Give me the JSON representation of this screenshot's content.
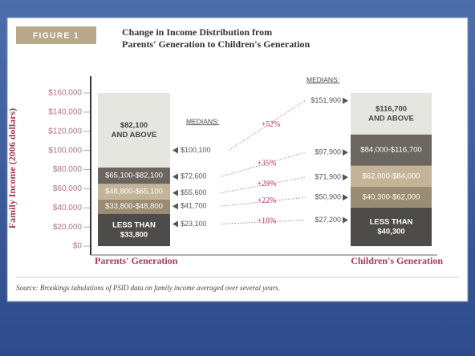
{
  "chart_data": {
    "type": "income_bands",
    "figure_label": "FIGURE 1",
    "title": [
      "Change in Income Distribution from",
      "Parents' Generation to Children's Generation"
    ],
    "ylabel": "Family Income (2006 dollars)",
    "ylim": [
      0,
      160000
    ],
    "yticks": [
      {
        "value": 0,
        "label": "$0"
      },
      {
        "value": 20000,
        "label": "$20,000"
      },
      {
        "value": 40000,
        "label": "$40,000"
      },
      {
        "value": 60000,
        "label": "$60,000"
      },
      {
        "value": 80000,
        "label": "$80,000"
      },
      {
        "value": 100000,
        "label": "$100,000"
      },
      {
        "value": 120000,
        "label": "$120,000"
      },
      {
        "value": 140000,
        "label": "$140,000"
      },
      {
        "value": 160000,
        "label": "$160,000"
      }
    ],
    "categories": [
      "Parents' Generation",
      "Children's Generation"
    ],
    "bars": [
      {
        "bands": [
          {
            "high": 33800,
            "label": [
              "LESS THAN",
              "$33,800"
            ],
            "color": "#4e4c4a",
            "text_color": "#ffffff"
          },
          {
            "low": 33800,
            "high": 48800,
            "label": [
              "$33,800-$48,800"
            ],
            "color": "#9a8c72",
            "text_color": "#ffffff"
          },
          {
            "low": 48800,
            "high": 65100,
            "label": [
              "$48,800-$65,100"
            ],
            "color": "#c4b497",
            "text_color": "#ffffff"
          },
          {
            "low": 65100,
            "high": 82100,
            "label": [
              "$65,100-$82,100"
            ],
            "color": "#6b6660",
            "text_color": "#ffffff"
          },
          {
            "low": 82100,
            "label": [
              "$82,100",
              "AND ABOVE"
            ],
            "color": "#e6e6e0",
            "text_color": "#444444"
          }
        ]
      },
      {
        "bands": [
          {
            "high": 40300,
            "label": [
              "LESS THAN",
              "$40,300"
            ],
            "color": "#4e4c4a",
            "text_color": "#ffffff"
          },
          {
            "low": 40300,
            "high": 62000,
            "label": [
              "$40,300-$62,000"
            ],
            "color": "#9a8c72",
            "text_color": "#ffffff"
          },
          {
            "low": 62000,
            "high": 84000,
            "label": [
              "$62,000-$84,000"
            ],
            "color": "#c4b497",
            "text_color": "#ffffff"
          },
          {
            "low": 84000,
            "high": 116700,
            "label": [
              "$84,000-$116,700"
            ],
            "color": "#6b6660",
            "text_color": "#ffffff"
          },
          {
            "low": 116700,
            "label": [
              "$116,700",
              "AND ABOVE"
            ],
            "color": "#e6e6e0",
            "text_color": "#444444"
          }
        ]
      }
    ],
    "medians_label": "MEDIANS:",
    "medians": [
      {
        "values": [
          23100,
          41700,
          55600,
          72600,
          100100
        ],
        "value_labels": [
          "$23,100",
          "$41,700",
          "$55,600",
          "$72,600",
          "$100,100"
        ]
      },
      {
        "values": [
          27200,
          50900,
          71900,
          97900,
          151900
        ],
        "value_labels": [
          "$27,200",
          "$50,900",
          "$71,900",
          "$97,900",
          "$151,900"
        ]
      }
    ],
    "changes": {
      "values": [
        18,
        22,
        29,
        35,
        52
      ],
      "value_labels": [
        "+18%",
        "+22%",
        "+29%",
        "+35%",
        "+52%"
      ]
    },
    "source": "Source: Brookings tabulations of PSID data on family income averaged over several years."
  }
}
